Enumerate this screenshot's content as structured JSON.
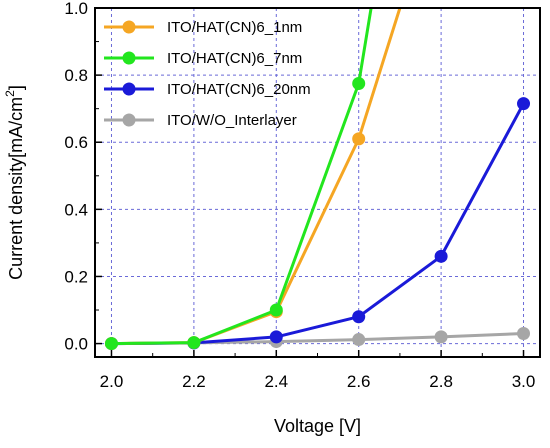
{
  "chart_data": {
    "type": "line",
    "title": "",
    "xlabel": "Voltage [V]",
    "ylabel": "Current density[mA/cm",
    "ylabel_superscript": "2",
    "ylabel_suffix": "]",
    "xlim": [
      2.0,
      3.0
    ],
    "ylim": [
      0.0,
      1.0
    ],
    "xticks": [
      2.0,
      2.2,
      2.4,
      2.6,
      2.8,
      3.0
    ],
    "xtick_labels": [
      "2.0",
      "2.2",
      "2.4",
      "2.6",
      "2.8",
      "3.0"
    ],
    "yticks": [
      0.0,
      0.2,
      0.4,
      0.6,
      0.8,
      1.0
    ],
    "ytick_labels": [
      "0.0",
      "0.2",
      "0.4",
      "0.6",
      "0.8",
      "1.0"
    ],
    "grid": true,
    "grid_style": "dashed",
    "legend_position": "top-left",
    "series": [
      {
        "name": "ITO/HAT(CN)6_1nm",
        "color": "#f5a623",
        "points": [
          [
            2.0,
            0.0
          ],
          [
            2.2,
            0.003
          ],
          [
            2.4,
            0.095
          ],
          [
            2.6,
            0.61
          ],
          [
            2.7,
            1.0
          ]
        ]
      },
      {
        "name": "ITO/HAT(CN)6_7nm",
        "color": "#22e61e",
        "points": [
          [
            2.0,
            0.0
          ],
          [
            2.2,
            0.003
          ],
          [
            2.4,
            0.1
          ],
          [
            2.6,
            0.775
          ],
          [
            2.63,
            1.0
          ]
        ]
      },
      {
        "name": "ITO/HAT(CN)6_20nm",
        "color": "#1a1ad8",
        "points": [
          [
            2.0,
            0.0
          ],
          [
            2.2,
            0.002
          ],
          [
            2.4,
            0.02
          ],
          [
            2.6,
            0.08
          ],
          [
            2.8,
            0.26
          ],
          [
            3.0,
            0.715
          ]
        ]
      },
      {
        "name": "ITO/W/O_Interlayer",
        "color": "#a6a6a6",
        "points": [
          [
            2.0,
            0.0
          ],
          [
            2.2,
            0.002
          ],
          [
            2.4,
            0.006
          ],
          [
            2.6,
            0.012
          ],
          [
            2.8,
            0.02
          ],
          [
            3.0,
            0.03
          ]
        ]
      }
    ]
  }
}
